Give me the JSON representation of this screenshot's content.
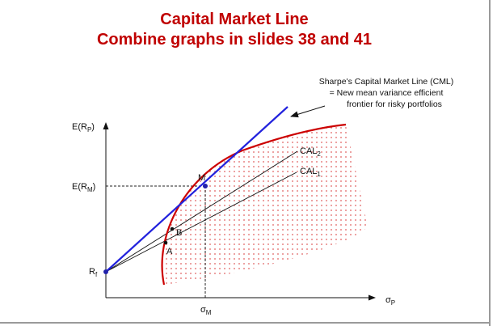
{
  "title": {
    "line1": "Capital Market Line",
    "line2": "Combine graphs in slides 38 and 41"
  },
  "annotation": {
    "line1": "Sharpe's Capital Market Line (CML)",
    "line2": "= New mean variance efficient",
    "line3": "frontier for risky portfolios"
  },
  "axis": {
    "y_label": "E(R",
    "y_label_sub": "P",
    "y_label_close": ")",
    "x_label": "σ",
    "x_label_sub": "P"
  },
  "markers": {
    "erm_label": "E(R",
    "erm_sub": "M",
    "erm_close": ")",
    "rf_label": "R",
    "rf_sub": "f",
    "sigma_m_label": "σ",
    "sigma_m_sub": "M"
  },
  "points": {
    "m": "M",
    "a": "A",
    "b": "B"
  },
  "lines": {
    "cal2": "CAL",
    "cal2_sub": "2",
    "cal1": "CAL",
    "cal1_sub": "1"
  },
  "colors": {
    "title": "#c00000",
    "cml": "#2222dd",
    "frontier": "#cc0000",
    "dots": "#e06060",
    "point": "#2222aa"
  }
}
